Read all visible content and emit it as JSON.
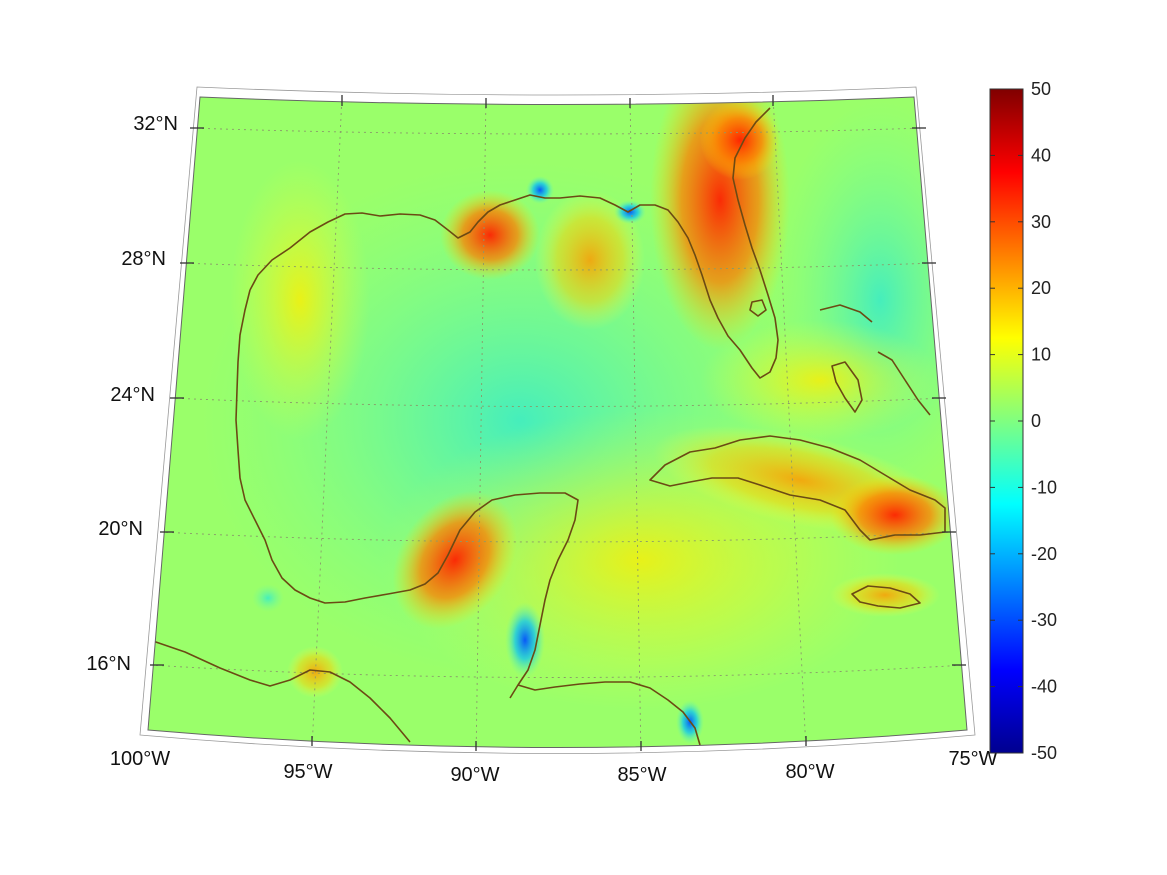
{
  "map": {
    "latitude_labels": [
      "32°N",
      "28°N",
      "24°N",
      "20°N",
      "16°N"
    ],
    "longitude_labels": [
      "100°W",
      "95°W",
      "90°W",
      "85°W",
      "80°W",
      "75°W"
    ],
    "projection": "conic",
    "graticule": "dotted",
    "coastline_color": "#6b4a14",
    "background_field_color": "#8cff78"
  },
  "colorbar": {
    "colormap": "jet",
    "min": -50,
    "max": 50,
    "tick_labels": [
      "50",
      "40",
      "30",
      "20",
      "10",
      "0",
      "-10",
      "-20",
      "-30",
      "-40",
      "-50"
    ]
  }
}
